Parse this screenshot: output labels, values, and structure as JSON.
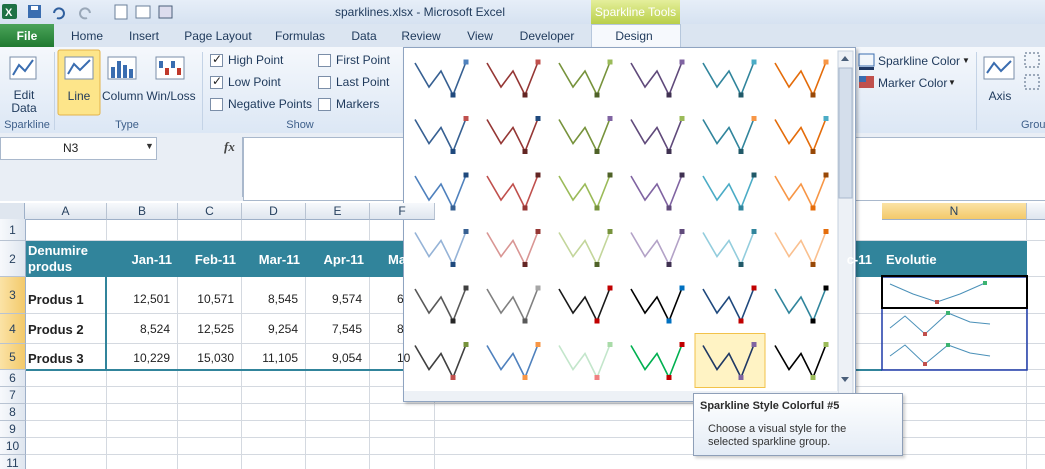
{
  "title_bar": {
    "title": "sparklines.xlsx  -  Microsoft Excel",
    "context_tab": "Sparkline Tools"
  },
  "tabs": [
    "File",
    "Home",
    "Insert",
    "Page Layout",
    "Formulas",
    "Data",
    "Review",
    "View",
    "Developer",
    "Design"
  ],
  "ribbon": {
    "sparkline_group": {
      "label": "Sparkline",
      "buttons": [
        "Edit Data"
      ]
    },
    "type_group": {
      "label": "Type",
      "buttons": [
        "Line",
        "Column",
        "Win/Loss"
      ]
    },
    "show_group": {
      "label": "Show",
      "options": [
        {
          "label": "High Point",
          "checked": true
        },
        {
          "label": "Low Point",
          "checked": true
        },
        {
          "label": "Negative Points",
          "checked": false
        },
        {
          "label": "First Point",
          "checked": false
        },
        {
          "label": "Last Point",
          "checked": false
        },
        {
          "label": "Markers",
          "checked": false
        }
      ]
    },
    "style_group": {
      "sparkline_color": "Sparkline Color",
      "marker_color": "Marker Color"
    },
    "group_group": {
      "label": "Grou",
      "buttons": [
        "Axis"
      ]
    }
  },
  "formula_bar": {
    "name_box": "N3",
    "fx": "fx"
  },
  "sheet": {
    "columns": [
      "A",
      "B",
      "C",
      "D",
      "E",
      "F",
      "N"
    ],
    "rows": [
      1,
      2,
      3,
      4,
      5,
      6,
      7,
      8,
      9,
      10,
      11
    ]
  },
  "table": {
    "header": [
      "Denumire produs",
      "Jan-11",
      "Feb-11",
      "Mar-11",
      "Apr-11",
      "Ma",
      "c-11",
      "Evolutie"
    ],
    "rows": [
      [
        "Produs 1",
        "12,501",
        "10,571",
        "8,545",
        "9,574",
        "6"
      ],
      [
        "Produs 2",
        "8,524",
        "12,525",
        "9,254",
        "7,545",
        "8"
      ],
      [
        "Produs 3",
        "10,229",
        "15,030",
        "11,105",
        "9,054",
        "10"
      ]
    ]
  },
  "tooltip": {
    "title": "Sparkline Style Colorful #5",
    "text": "Choose a visual style for the selected sparkline group."
  }
}
